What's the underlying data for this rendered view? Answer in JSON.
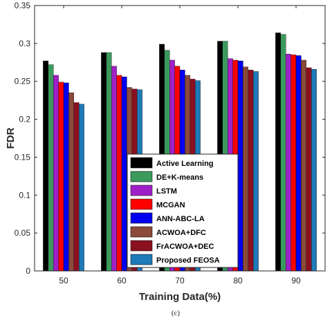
{
  "chart_data": {
    "type": "bar",
    "title": "",
    "xlabel": "Training Data(%)",
    "ylabel": "FDR",
    "caption": "(c)",
    "ylim": [
      0,
      0.35
    ],
    "yticks": [
      "0",
      "0.05",
      "0.1",
      "0.15",
      "0.2",
      "0.25",
      "0.3",
      "0.35"
    ],
    "categories": [
      "50",
      "60",
      "70",
      "80",
      "90"
    ],
    "grid": false,
    "legend_position": "bottom-center",
    "series": [
      {
        "name": "Active Learning",
        "color": "#000000",
        "values": [
          0.277,
          0.288,
          0.299,
          0.303,
          0.314
        ]
      },
      {
        "name": "DE+K-means",
        "color": "#3a9a5c",
        "values": [
          0.272,
          0.288,
          0.291,
          0.303,
          0.312
        ]
      },
      {
        "name": "LSTM",
        "color": "#a020c8",
        "values": [
          0.258,
          0.27,
          0.278,
          0.28,
          0.286
        ]
      },
      {
        "name": "MCGAN",
        "color": "#ff0000",
        "values": [
          0.249,
          0.258,
          0.27,
          0.278,
          0.285
        ]
      },
      {
        "name": "ANN-ABC-LA",
        "color": "#0000ee",
        "values": [
          0.248,
          0.256,
          0.265,
          0.277,
          0.284
        ]
      },
      {
        "name": "ACWOA+DFC",
        "color": "#8b4a3a",
        "values": [
          0.235,
          0.242,
          0.258,
          0.269,
          0.278
        ]
      },
      {
        "name": "FrACWOA+DEC",
        "color": "#8b1020",
        "values": [
          0.222,
          0.24,
          0.253,
          0.265,
          0.268
        ]
      },
      {
        "name": "Proposed FEOSA",
        "color": "#1e7ab8",
        "values": [
          0.22,
          0.239,
          0.251,
          0.263,
          0.266
        ]
      }
    ]
  }
}
